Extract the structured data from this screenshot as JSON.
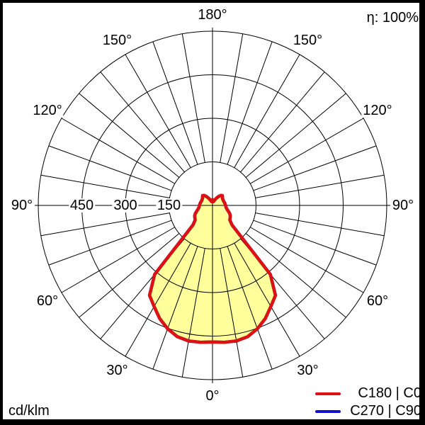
{
  "eta_label": "η: 100%",
  "unit_label": "cd/klm",
  "legend": [
    {
      "label": "C180 | C0",
      "color": "#dd1111"
    },
    {
      "label": "C270 | C90",
      "color": "#1111cc"
    }
  ],
  "colors": {
    "curve_c180_c0": "#dd1111",
    "curve_c270_c90": "#1111cc",
    "curve_fill": "#ffff9b",
    "grid": "#000000",
    "background": "#ffffff"
  },
  "chart_data": {
    "type": "polar_intensity_distribution",
    "unit": "cd/klm",
    "angle_ticks_deg": [
      0,
      30,
      60,
      90,
      120,
      150,
      180
    ],
    "spoke_step_deg": 10,
    "radial_ticks": [
      150,
      300,
      450
    ],
    "radial_tick_labels": [
      "150",
      "300",
      "450"
    ],
    "radial_max": 600,
    "gamma_zero_position": "bottom",
    "series": [
      {
        "name": "C180 | C0",
        "color": "#dd1111",
        "fill_color": "#ffff9b",
        "symmetric": true,
        "gamma_deg": [
          0,
          5,
          10,
          15,
          20,
          25,
          30,
          35,
          40,
          45,
          50,
          55,
          60,
          65,
          70,
          75,
          80,
          85,
          90,
          95,
          100,
          105,
          110,
          115,
          120,
          125,
          130,
          135,
          140,
          145,
          150,
          155,
          160,
          165,
          170,
          175,
          180
        ],
        "values": [
          470,
          473,
          474,
          468,
          452,
          430,
          402,
          378,
          310,
          95,
          78,
          74,
          71,
          65,
          58,
          52,
          48,
          46,
          45,
          44,
          43,
          42,
          41,
          41,
          41,
          42,
          45,
          48,
          45,
          38,
          30,
          24,
          18,
          14,
          13,
          15,
          20
        ]
      },
      {
        "name": "C270 | C90",
        "color": "#1111cc",
        "hidden_behind_first_series": true
      }
    ]
  }
}
